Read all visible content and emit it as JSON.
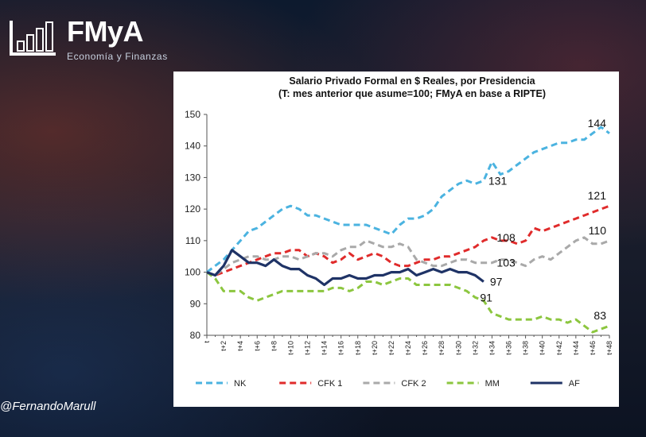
{
  "brand": {
    "name": "FMyA",
    "tagline": "Economía y Finanzas"
  },
  "social": {
    "handle": "@FernandoMarull"
  },
  "chart_data": {
    "type": "line",
    "title": "Salario Privado Formal en $ Reales, por Presidencia",
    "subtitle": "(T: mes anterior que asume=100; FMyA en base a RIPTE)",
    "ylim": [
      80,
      150
    ],
    "yticks": [
      80,
      90,
      100,
      110,
      120,
      130,
      140,
      150
    ],
    "xticks": [
      "t",
      "t+2",
      "t+4",
      "t+6",
      "t+8",
      "t+10",
      "t+12",
      "t+14",
      "t+16",
      "t+18",
      "t+20",
      "t+22",
      "t+24",
      "t+26",
      "t+28",
      "t+30",
      "t+32",
      "t+34",
      "t+36",
      "t+38",
      "t+40",
      "t+42",
      "t+44",
      "t+46",
      "t+48"
    ],
    "legend_position": "bottom",
    "series": [
      {
        "name": "NK",
        "color": "#4bb3e0",
        "dash": true,
        "end_label": "144",
        "callouts": [
          {
            "x": 33,
            "label": "131"
          }
        ],
        "values": [
          100,
          102,
          104,
          107,
          110,
          113,
          114,
          116,
          118,
          120,
          121,
          120,
          118,
          118,
          117,
          116,
          115,
          115,
          115,
          115,
          114,
          113,
          112,
          115,
          117,
          117,
          118,
          120,
          124,
          126,
          128,
          129,
          128,
          129,
          135,
          131,
          132,
          134,
          136,
          138,
          139,
          140,
          141,
          141,
          142,
          142,
          144,
          146,
          144
        ]
      },
      {
        "name": "CFK 1",
        "color": "#e02b2b",
        "dash": true,
        "end_label": "121",
        "callouts": [
          {
            "x": 34,
            "label": "108"
          }
        ],
        "values": [
          100,
          99,
          100,
          101,
          102,
          103,
          104,
          105,
          106,
          106,
          107,
          107,
          105,
          106,
          105,
          103,
          104,
          106,
          104,
          105,
          106,
          105,
          103,
          102,
          102,
          103,
          104,
          104,
          105,
          105,
          106,
          107,
          108,
          110,
          111,
          110,
          110,
          109,
          110,
          114,
          113,
          114,
          115,
          116,
          117,
          118,
          119,
          120,
          121
        ]
      },
      {
        "name": "CFK 2",
        "color": "#a9a9a9",
        "dash": true,
        "end_label": "110",
        "callouts": [
          {
            "x": 34,
            "label": "103"
          }
        ],
        "values": [
          100,
          99,
          101,
          103,
          104,
          105,
          105,
          104,
          104,
          105,
          105,
          104,
          105,
          106,
          106,
          105,
          107,
          108,
          108,
          110,
          109,
          108,
          108,
          109,
          108,
          104,
          103,
          102,
          102,
          103,
          104,
          104,
          103,
          103,
          103,
          104,
          104,
          103,
          102,
          104,
          105,
          104,
          106,
          108,
          110,
          111,
          109,
          109,
          110
        ]
      },
      {
        "name": "MM",
        "color": "#8cc63f",
        "dash": true,
        "end_label": "83",
        "callouts": [
          {
            "x": 32,
            "label": "91"
          }
        ],
        "values": [
          100,
          98,
          94,
          94,
          94,
          92,
          91,
          92,
          93,
          94,
          94,
          94,
          94,
          94,
          94,
          95,
          95,
          94,
          95,
          97,
          97,
          96,
          97,
          98,
          98,
          96,
          96,
          96,
          96,
          96,
          95,
          94,
          92,
          91,
          87,
          86,
          85,
          85,
          85,
          85,
          86,
          85,
          85,
          84,
          85,
          83,
          81,
          82,
          83
        ]
      },
      {
        "name": "AF",
        "color": "#1f3366",
        "dash": false,
        "end_label": "97",
        "callouts": [],
        "values": [
          100,
          99,
          102,
          107,
          105,
          103,
          103,
          102,
          104,
          102,
          101,
          101,
          99,
          98,
          96,
          98,
          98,
          99,
          98,
          98,
          99,
          99,
          100,
          100,
          101,
          99,
          100,
          101,
          100,
          101,
          100,
          100,
          99,
          97
        ]
      }
    ]
  }
}
